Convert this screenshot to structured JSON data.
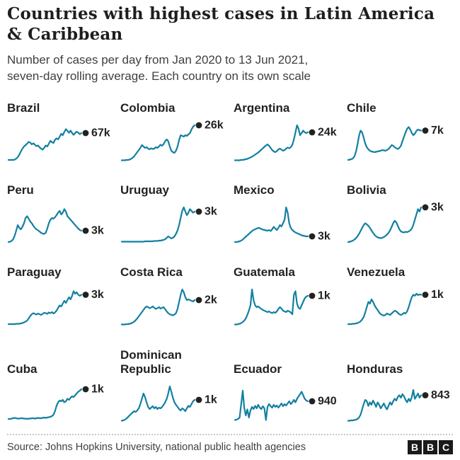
{
  "header": {
    "title_line1": "Countries with highest cases in Latin America",
    "title_line2": "& Caribbean",
    "subtitle_line1": "Number of cases per day from Jan 2020 to 13 Jun 2021,",
    "subtitle_line2": "seven-day rolling average. Each country on its own scale"
  },
  "footer": {
    "source": "Source: Johns Hopkins University, national public health agencies",
    "logo_letters": [
      "B",
      "B",
      "C"
    ]
  },
  "colors": {
    "line": "#1380A1",
    "dot": "#222222",
    "title": "#1e1e1e",
    "subtitle": "#404040"
  },
  "chart_data": {
    "type": "line",
    "x_range": [
      "Jan 2020",
      "13 Jun 2021"
    ],
    "note": "Small multiples of daily cases, seven-day rolling average; values normalized 0-100 per country (each country on its own scale); end label shows latest daily cases",
    "series": [
      {
        "name": "Brazil",
        "end_label": "67k",
        "values": [
          2,
          2,
          2,
          2,
          3,
          6,
          10,
          17,
          26,
          34,
          40,
          44,
          48,
          53,
          51,
          46,
          49,
          45,
          41,
          43,
          38,
          34,
          31,
          36,
          43,
          40,
          48,
          56,
          52,
          50,
          59,
          63,
          60,
          68,
          76,
          72,
          81,
          89,
          84,
          79,
          85,
          78,
          73,
          78,
          82,
          79,
          75,
          78
        ]
      },
      {
        "name": "Colombia",
        "end_label": "26k",
        "values": [
          1,
          1,
          1,
          2,
          2,
          3,
          5,
          8,
          12,
          18,
          24,
          30,
          36,
          44,
          40,
          36,
          38,
          34,
          32,
          35,
          33,
          34,
          38,
          36,
          40,
          45,
          42,
          47,
          55,
          60,
          55,
          40,
          28,
          24,
          22,
          28,
          40,
          58,
          72,
          70,
          68,
          72,
          70,
          74,
          78,
          88,
          96,
          100
        ]
      },
      {
        "name": "Argentina",
        "end_label": "24k",
        "values": [
          1,
          1,
          1,
          1,
          2,
          2,
          3,
          4,
          5,
          7,
          9,
          11,
          14,
          17,
          20,
          23,
          27,
          31,
          35,
          39,
          43,
          46,
          42,
          36,
          30,
          26,
          24,
          27,
          32,
          34,
          31,
          28,
          30,
          34,
          37,
          35,
          38,
          45,
          60,
          80,
          100,
          90,
          72,
          78,
          85,
          80,
          78,
          80
        ]
      },
      {
        "name": "Chile",
        "end_label": "7k",
        "values": [
          2,
          3,
          4,
          6,
          12,
          25,
          45,
          70,
          85,
          80,
          65,
          48,
          38,
          32,
          28,
          26,
          25,
          24,
          25,
          26,
          27,
          28,
          30,
          29,
          28,
          30,
          33,
          38,
          44,
          42,
          38,
          35,
          33,
          36,
          42,
          55,
          68,
          80,
          90,
          95,
          88,
          78,
          72,
          76,
          84,
          88,
          86,
          85
        ]
      },
      {
        "name": "Peru",
        "end_label": "3k",
        "values": [
          2,
          3,
          5,
          10,
          20,
          35,
          50,
          42,
          38,
          45,
          55,
          70,
          75,
          68,
          60,
          55,
          48,
          42,
          38,
          35,
          32,
          28,
          26,
          25,
          28,
          40,
          55,
          65,
          70,
          68,
          72,
          78,
          85,
          90,
          80,
          85,
          95,
          88,
          75,
          70,
          65,
          60,
          55,
          50,
          45,
          40,
          36,
          34
        ]
      },
      {
        "name": "Uruguay",
        "end_label": "3k",
        "values": [
          3,
          3,
          3,
          3,
          3,
          3,
          3,
          3,
          3,
          3,
          3,
          3,
          3,
          3,
          3,
          4,
          4,
          4,
          4,
          4,
          4,
          5,
          5,
          5,
          6,
          6,
          7,
          8,
          10,
          14,
          18,
          15,
          12,
          14,
          18,
          25,
          35,
          50,
          70,
          90,
          100,
          88,
          78,
          85,
          95,
          90,
          85,
          88
        ]
      },
      {
        "name": "Mexico",
        "end_label": "3k",
        "values": [
          2,
          2,
          3,
          4,
          6,
          9,
          13,
          17,
          21,
          25,
          29,
          33,
          36,
          38,
          40,
          42,
          41,
          39,
          37,
          36,
          35,
          34,
          36,
          33,
          38,
          45,
          40,
          36,
          42,
          50,
          46,
          55,
          65,
          100,
          85,
          55,
          42,
          36,
          32,
          29,
          27,
          25,
          23,
          21,
          20,
          19,
          18,
          18
        ]
      },
      {
        "name": "Bolivia",
        "end_label": "3k",
        "values": [
          2,
          3,
          4,
          6,
          9,
          13,
          18,
          25,
          33,
          42,
          50,
          55,
          52,
          48,
          42,
          35,
          28,
          22,
          18,
          15,
          14,
          13,
          14,
          16,
          19,
          23,
          28,
          35,
          45,
          55,
          62,
          58,
          48,
          38,
          32,
          30,
          29,
          31,
          30,
          32,
          35,
          40,
          50,
          65,
          80,
          95,
          88,
          100
        ]
      },
      {
        "name": "Paraguay",
        "end_label": "3k",
        "values": [
          2,
          2,
          2,
          2,
          2,
          3,
          3,
          3,
          4,
          5,
          7,
          9,
          12,
          18,
          25,
          30,
          33,
          31,
          29,
          32,
          30,
          28,
          31,
          34,
          33,
          31,
          35,
          33,
          36,
          32,
          35,
          40,
          48,
          55,
          52,
          60,
          68,
          62,
          70,
          78,
          72,
          82,
          95,
          88,
          92,
          85,
          82,
          85
        ]
      },
      {
        "name": "Costa Rica",
        "end_label": "2k",
        "values": [
          1,
          1,
          1,
          2,
          2,
          3,
          4,
          6,
          9,
          13,
          18,
          24,
          30,
          36,
          42,
          48,
          52,
          50,
          47,
          49,
          52,
          48,
          45,
          47,
          50,
          46,
          48,
          50,
          44,
          38,
          33,
          30,
          28,
          27,
          29,
          33,
          45,
          65,
          85,
          100,
          92,
          78,
          70,
          72,
          70,
          68,
          66,
          70
        ]
      },
      {
        "name": "Guatemala",
        "end_label": "1k",
        "values": [
          1,
          1,
          2,
          3,
          5,
          8,
          12,
          18,
          28,
          40,
          55,
          100,
          70,
          55,
          50,
          52,
          48,
          45,
          42,
          40,
          38,
          36,
          38,
          35,
          33,
          36,
          34,
          38,
          45,
          50,
          46,
          40,
          38,
          36,
          40,
          38,
          35,
          30,
          85,
          95,
          60,
          48,
          45,
          55,
          65,
          75,
          80,
          82
        ]
      },
      {
        "name": "Venezuela",
        "end_label": "1k",
        "values": [
          2,
          2,
          2,
          3,
          3,
          4,
          5,
          7,
          10,
          15,
          22,
          35,
          50,
          65,
          60,
          72,
          65,
          55,
          48,
          42,
          35,
          30,
          28,
          26,
          28,
          32,
          30,
          28,
          32,
          36,
          40,
          38,
          34,
          30,
          28,
          30,
          34,
          32,
          38,
          50,
          65,
          78,
          85,
          82,
          88,
          84,
          86,
          85
        ]
      },
      {
        "name": "Cuba",
        "end_label": "1k",
        "values": [
          8,
          8,
          9,
          10,
          11,
          10,
          9,
          9,
          10,
          10,
          9,
          9,
          8,
          9,
          9,
          10,
          10,
          9,
          10,
          11,
          10,
          10,
          11,
          12,
          11,
          12,
          13,
          14,
          16,
          20,
          30,
          45,
          55,
          60,
          58,
          62,
          55,
          58,
          65,
          62,
          68,
          72,
          70,
          75,
          80,
          85,
          88,
          92
        ]
      },
      {
        "name": "Dominican Republic",
        "end_label": "1k",
        "values": [
          3,
          4,
          6,
          9,
          13,
          18,
          22,
          26,
          30,
          28,
          32,
          38,
          50,
          65,
          80,
          70,
          55,
          42,
          36,
          40,
          44,
          38,
          42,
          36,
          40,
          38,
          42,
          48,
          55,
          65,
          80,
          100,
          85,
          68,
          55,
          48,
          42,
          36,
          32,
          38,
          35,
          30,
          38,
          45,
          42,
          50,
          58,
          62
        ]
      },
      {
        "name": "Ecuador",
        "end_label": "940",
        "values": [
          5,
          6,
          8,
          12,
          50,
          88,
          40,
          18,
          35,
          12,
          32,
          42,
          36,
          45,
          38,
          48,
          40,
          36,
          44,
          38,
          5,
          42,
          50,
          44,
          40,
          48,
          42,
          46,
          40,
          46,
          52,
          44,
          50,
          46,
          52,
          58,
          50,
          55,
          62,
          55,
          65,
          72,
          78,
          85,
          75,
          65,
          60,
          58
        ]
      },
      {
        "name": "Honduras",
        "end_label": "843",
        "values": [
          3,
          3,
          4,
          4,
          5,
          6,
          8,
          12,
          20,
          35,
          50,
          62,
          58,
          45,
          55,
          48,
          60,
          52,
          42,
          55,
          48,
          38,
          45,
          52,
          42,
          35,
          45,
          55,
          48,
          58,
          65,
          60,
          70,
          75,
          68,
          78,
          72,
          62,
          55,
          65,
          58,
          70,
          90,
          65,
          72,
          80,
          68,
          75
        ]
      }
    ]
  }
}
